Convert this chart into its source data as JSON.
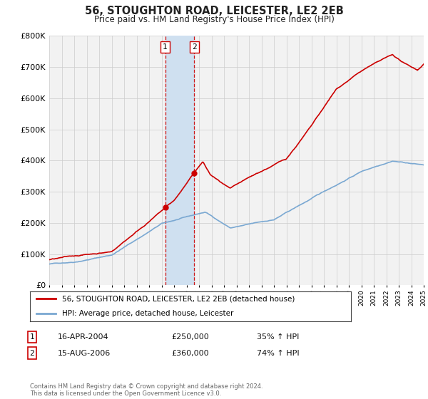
{
  "title": "56, STOUGHTON ROAD, LEICESTER, LE2 2EB",
  "subtitle": "Price paid vs. HM Land Registry's House Price Index (HPI)",
  "legend_line1": "56, STOUGHTON ROAD, LEICESTER, LE2 2EB (detached house)",
  "legend_line2": "HPI: Average price, detached house, Leicester",
  "transaction1_label": "1",
  "transaction1_date": "16-APR-2004",
  "transaction1_price": "£250,000",
  "transaction1_hpi": "35% ↑ HPI",
  "transaction1_year": 2004.29,
  "transaction1_value": 250000,
  "transaction2_label": "2",
  "transaction2_date": "15-AUG-2006",
  "transaction2_price": "£360,000",
  "transaction2_hpi": "74% ↑ HPI",
  "transaction2_year": 2006.62,
  "transaction2_value": 360000,
  "footer": "Contains HM Land Registry data © Crown copyright and database right 2024.\nThis data is licensed under the Open Government Licence v3.0.",
  "hpi_color": "#7aa8d2",
  "price_color": "#cc0000",
  "marker_color": "#cc0000",
  "shaded_color": "#cfe0f0",
  "ylim": [
    0,
    800000
  ],
  "xlim_start": 1995,
  "xlim_end": 2025,
  "yticks": [
    0,
    100000,
    200000,
    300000,
    400000,
    500000,
    600000,
    700000,
    800000
  ],
  "grid_color": "#cccccc",
  "plot_bg": "#f2f2f2"
}
